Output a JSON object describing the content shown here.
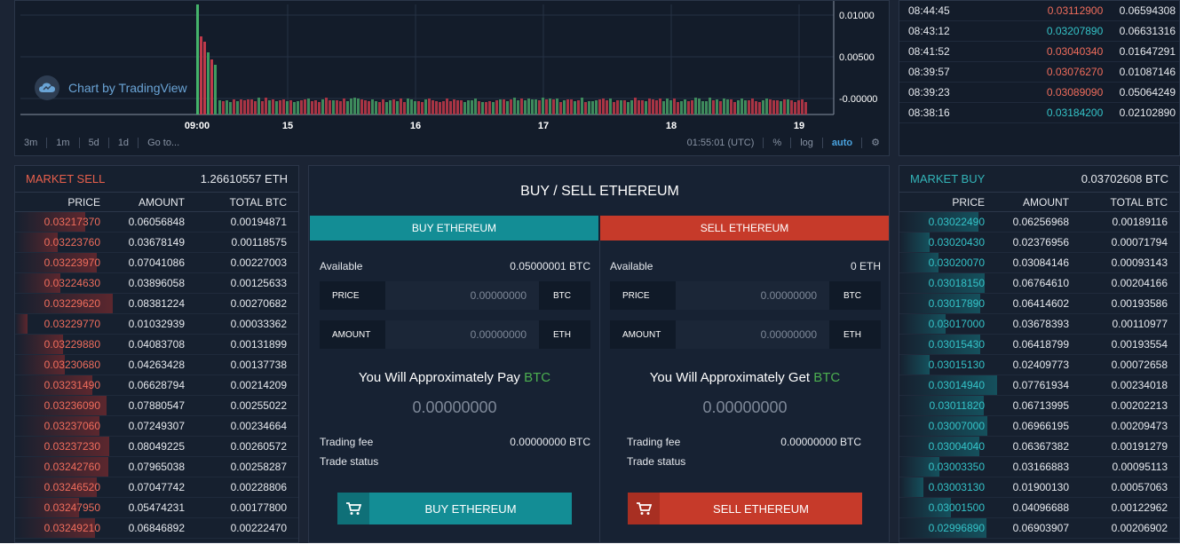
{
  "chart": {
    "brand": "Chart by TradingView",
    "y_ticks": [
      "0.01000",
      "0.00500",
      "-0.00000"
    ],
    "x_ticks": [
      "09:00",
      "15",
      "16",
      "17",
      "18",
      "19"
    ],
    "toolbar": {
      "intervals": [
        "3m",
        "1m",
        "5d",
        "1d",
        "Go to..."
      ],
      "time": "01:55:01 (UTC)",
      "percent": "%",
      "log": "log",
      "auto": "auto"
    }
  },
  "trades": [
    {
      "time": "08:44:45",
      "price": "0.03112900",
      "amount": "0.06594308",
      "side": "sell"
    },
    {
      "time": "08:43:12",
      "price": "0.03207890",
      "amount": "0.06631316",
      "side": "buy"
    },
    {
      "time": "08:41:52",
      "price": "0.03040340",
      "amount": "0.01647291",
      "side": "sell"
    },
    {
      "time": "08:39:57",
      "price": "0.03076270",
      "amount": "0.01087146",
      "side": "sell"
    },
    {
      "time": "08:39:23",
      "price": "0.03089090",
      "amount": "0.05064249",
      "side": "sell"
    },
    {
      "time": "08:38:16",
      "price": "0.03184200",
      "amount": "0.02102890",
      "side": "buy"
    }
  ],
  "sell_book": {
    "title": "MARKET SELL",
    "total": "1.26610557 ETH",
    "cols": [
      "PRICE",
      "AMOUNT",
      "TOTAL BTC"
    ],
    "rows": [
      [
        "0.03217370",
        "0.06056848",
        "0.00194871"
      ],
      [
        "0.03223760",
        "0.03678149",
        "0.00118575"
      ],
      [
        "0.03223970",
        "0.07041086",
        "0.00227003"
      ],
      [
        "0.03224630",
        "0.03896058",
        "0.00125633"
      ],
      [
        "0.03229620",
        "0.08381224",
        "0.00270682"
      ],
      [
        "0.03229770",
        "0.01032939",
        "0.00033362"
      ],
      [
        "0.03229880",
        "0.04083708",
        "0.00131899"
      ],
      [
        "0.03230680",
        "0.04263428",
        "0.00137738"
      ],
      [
        "0.03231490",
        "0.06628794",
        "0.00214209"
      ],
      [
        "0.03236090",
        "0.07880547",
        "0.00255022"
      ],
      [
        "0.03237060",
        "0.07249307",
        "0.00234664"
      ],
      [
        "0.03237230",
        "0.08049225",
        "0.00260572"
      ],
      [
        "0.03242760",
        "0.07965038",
        "0.00258287"
      ],
      [
        "0.03246520",
        "0.07047742",
        "0.00228806"
      ],
      [
        "0.03247950",
        "0.05474231",
        "0.00177800"
      ],
      [
        "0.03249210",
        "0.06846892",
        "0.00222470"
      ]
    ]
  },
  "buy_book": {
    "title": "MARKET BUY",
    "total": "0.03702608 BTC",
    "cols": [
      "PRICE",
      "AMOUNT",
      "TOTAL BTC"
    ],
    "rows": [
      [
        "0.03022490",
        "0.06256968",
        "0.00189116"
      ],
      [
        "0.03020430",
        "0.02376956",
        "0.00071794"
      ],
      [
        "0.03020070",
        "0.03084146",
        "0.00093143"
      ],
      [
        "0.03018150",
        "0.06764610",
        "0.00204166"
      ],
      [
        "0.03017890",
        "0.06414602",
        "0.00193586"
      ],
      [
        "0.03017000",
        "0.03678393",
        "0.00110977"
      ],
      [
        "0.03015430",
        "0.06418799",
        "0.00193554"
      ],
      [
        "0.03015130",
        "0.02409773",
        "0.00072658"
      ],
      [
        "0.03014940",
        "0.07761934",
        "0.00234018"
      ],
      [
        "0.03011820",
        "0.06713995",
        "0.00202213"
      ],
      [
        "0.03007000",
        "0.06966195",
        "0.00209473"
      ],
      [
        "0.03004040",
        "0.06367382",
        "0.00191279"
      ],
      [
        "0.03003350",
        "0.03166883",
        "0.00095113"
      ],
      [
        "0.03003130",
        "0.01900130",
        "0.00057063"
      ],
      [
        "0.03001500",
        "0.04096688",
        "0.00122962"
      ],
      [
        "0.02996890",
        "0.06903907",
        "0.00206902"
      ]
    ]
  },
  "form": {
    "title": "BUY / SELL ETHEREUM",
    "buy": {
      "tab": "BUY ETHEREUM",
      "available_label": "Available",
      "available_value": "0.05000001 BTC",
      "price_label": "PRICE",
      "price_value": "0.00000000",
      "price_unit": "BTC",
      "amount_label": "AMOUNT",
      "amount_value": "0.00000000",
      "amount_unit": "ETH",
      "approx_text": "You Will Approximately Pay",
      "approx_cur": "BTC",
      "approx_value": "0.00000000",
      "fee_label": "Trading fee",
      "fee_value": "0.00000000 BTC",
      "status_label": "Trade status",
      "action": "BUY ETHEREUM"
    },
    "sell": {
      "tab": "SELL ETHEREUM",
      "available_label": "Available",
      "available_value": "0 ETH",
      "price_label": "PRICE",
      "price_value": "0.00000000",
      "price_unit": "BTC",
      "amount_label": "AMOUNT",
      "amount_value": "0.00000000",
      "amount_unit": "ETH",
      "approx_text": "You Will Approximately Get",
      "approx_cur": "BTC",
      "approx_value": "0.00000000",
      "fee_label": "Trading fee",
      "fee_value": "0.00000000 BTC",
      "status_label": "Trade status",
      "action": "SELL ETHEREUM"
    }
  },
  "colors": {
    "buy": "#138d95",
    "sell": "#c63a2a",
    "sell_text": "#f06d5c",
    "buy_text": "#34c3c8"
  }
}
